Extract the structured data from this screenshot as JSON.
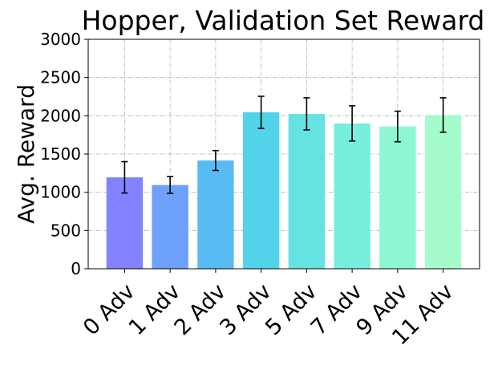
{
  "chart_data": {
    "type": "bar",
    "title": "Hopper, Validation Set Reward",
    "xlabel": "",
    "ylabel": "Avg. Reward",
    "categories": [
      "0 Adv",
      "1 Adv",
      "2 Adv",
      "3 Adv",
      "5 Adv",
      "7 Adv",
      "9 Adv",
      "11 Adv"
    ],
    "values": [
      1195,
      1095,
      1415,
      2045,
      2025,
      1900,
      1860,
      2010
    ],
    "errors": [
      205,
      110,
      130,
      210,
      210,
      230,
      200,
      225
    ],
    "colors": [
      "#8383ff",
      "#6ea1fa",
      "#59bbf3",
      "#52d3e9",
      "#64e3e2",
      "#78efdc",
      "#8df7d2",
      "#a5fbcb"
    ],
    "ylim": [
      0,
      3000
    ],
    "yticks": [
      "0",
      "500",
      "1000",
      "1500",
      "2000",
      "2500",
      "3000"
    ],
    "grid": true
  }
}
